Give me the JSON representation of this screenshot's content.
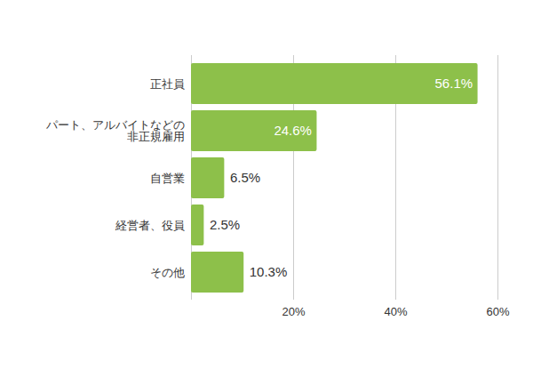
{
  "chart_data": {
    "type": "bar",
    "orientation": "horizontal",
    "categories": [
      "正社員",
      "パート、アルバイトなどの\n非正規雇用",
      "自営業",
      "経営者、役員",
      "その他"
    ],
    "values": [
      56.1,
      24.6,
      6.5,
      2.5,
      10.3
    ],
    "value_labels": [
      "56.1%",
      "24.6%",
      "6.5%",
      "2.5%",
      "10.3%"
    ],
    "color": "#8dc04a",
    "xlim": [
      0,
      60
    ],
    "xticks": [
      {
        "value": 20,
        "label": "20%"
      },
      {
        "value": 40,
        "label": "40%"
      },
      {
        "value": 60,
        "label": "60%"
      }
    ],
    "grid": true,
    "data_labels": true
  }
}
